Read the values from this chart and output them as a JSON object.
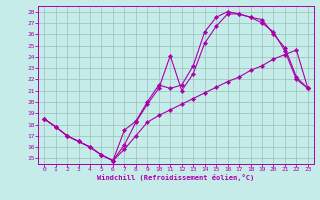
{
  "xlabel": "Windchill (Refroidissement éolien,°C)",
  "bg_color": "#c5ece8",
  "line_color": "#aa00aa",
  "grid_color": "#9bbfba",
  "xlim": [
    -0.5,
    23.5
  ],
  "ylim": [
    14.5,
    28.5
  ],
  "xticks": [
    0,
    1,
    2,
    3,
    4,
    5,
    6,
    7,
    8,
    9,
    10,
    11,
    12,
    13,
    14,
    15,
    16,
    17,
    18,
    19,
    20,
    21,
    22,
    23
  ],
  "yticks": [
    15,
    16,
    17,
    18,
    19,
    20,
    21,
    22,
    23,
    24,
    25,
    26,
    27,
    28
  ],
  "curve1_x": [
    0,
    1,
    2,
    3,
    4,
    5,
    6,
    7,
    8,
    9,
    10,
    11,
    12,
    13,
    14,
    15,
    16,
    17,
    18,
    19,
    20,
    21,
    22,
    23
  ],
  "curve1_y": [
    18.5,
    17.8,
    17.0,
    16.5,
    16.0,
    15.3,
    14.8,
    16.2,
    18.2,
    19.8,
    21.2,
    24.1,
    21.0,
    22.5,
    25.2,
    26.7,
    27.8,
    27.8,
    27.5,
    27.3,
    26.0,
    24.8,
    22.2,
    21.2
  ],
  "curve2_x": [
    0,
    1,
    2,
    3,
    4,
    5,
    6,
    7,
    8,
    9,
    10,
    11,
    12,
    13,
    14,
    15,
    16,
    17,
    18,
    19,
    20,
    21,
    22,
    23
  ],
  "curve2_y": [
    18.5,
    17.8,
    17.0,
    16.5,
    16.0,
    15.3,
    14.8,
    17.5,
    18.3,
    20.0,
    21.5,
    21.2,
    21.5,
    23.2,
    26.2,
    27.5,
    28.0,
    27.8,
    27.5,
    27.0,
    26.2,
    24.5,
    22.0,
    21.2
  ],
  "curve3_x": [
    0,
    1,
    2,
    3,
    4,
    5,
    6,
    7,
    8,
    9,
    10,
    11,
    12,
    13,
    14,
    15,
    16,
    17,
    18,
    19,
    20,
    21,
    22,
    23
  ],
  "curve3_y": [
    18.5,
    17.8,
    17.0,
    16.5,
    16.0,
    15.3,
    14.8,
    15.8,
    17.0,
    18.2,
    18.8,
    19.3,
    19.8,
    20.3,
    20.8,
    21.3,
    21.8,
    22.2,
    22.8,
    23.2,
    23.8,
    24.2,
    24.6,
    21.2
  ]
}
